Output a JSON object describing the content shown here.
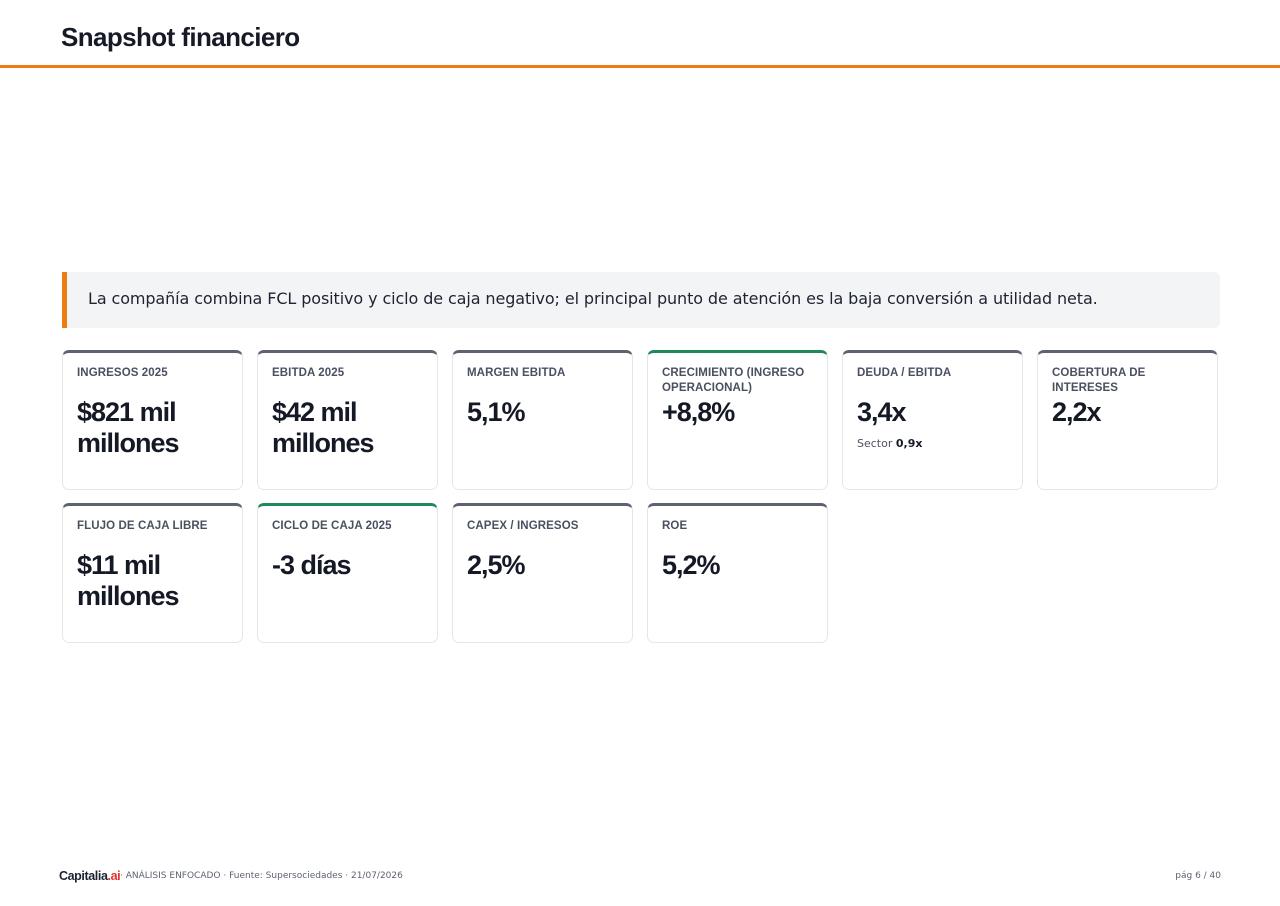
{
  "header": {
    "title": "Snapshot financiero"
  },
  "callout": {
    "text": "La compañía combina FCL positivo y ciclo de caja negativo; el principal punto de atención es la baja conversión a utilidad neta."
  },
  "cards": [
    {
      "label": "INGRESOS 2025",
      "value": "$821 mil millones"
    },
    {
      "label": "EBITDA 2025",
      "value": "$42 mil millones"
    },
    {
      "label": "MARGEN EBITDA",
      "value": "5,1%"
    },
    {
      "label": "CRECIMIENTO (INGRESO OPERACIONAL)",
      "value": "+8,8%"
    },
    {
      "label": "DEUDA / EBITDA",
      "value": "3,4x",
      "note_label": "Sector",
      "note_value": "0,9x"
    },
    {
      "label": "COBERTURA DE INTERESES",
      "value": "2,2x"
    },
    {
      "label": "FLUJO DE CAJA LIBRE",
      "value": "$11 mil millones"
    },
    {
      "label": "CICLO DE CAJA 2025",
      "value": "-3 días"
    },
    {
      "label": "CAPEX / INGRESOS",
      "value": "2,5%"
    },
    {
      "label": "ROE",
      "value": "5,2%"
    }
  ],
  "colors": {
    "accent": "#ee7d11",
    "positive": "#1f8a55",
    "neutral": "#5d6270",
    "brand_tld": "#e0322a"
  },
  "footer": {
    "logo_main": "Capitalia",
    "logo_tld": ".ai",
    "meta": "· ANÁLISIS ENFOCADO · Fuente: Supersociedades · 21/07/2026",
    "page": "pág 6 / 40"
  }
}
